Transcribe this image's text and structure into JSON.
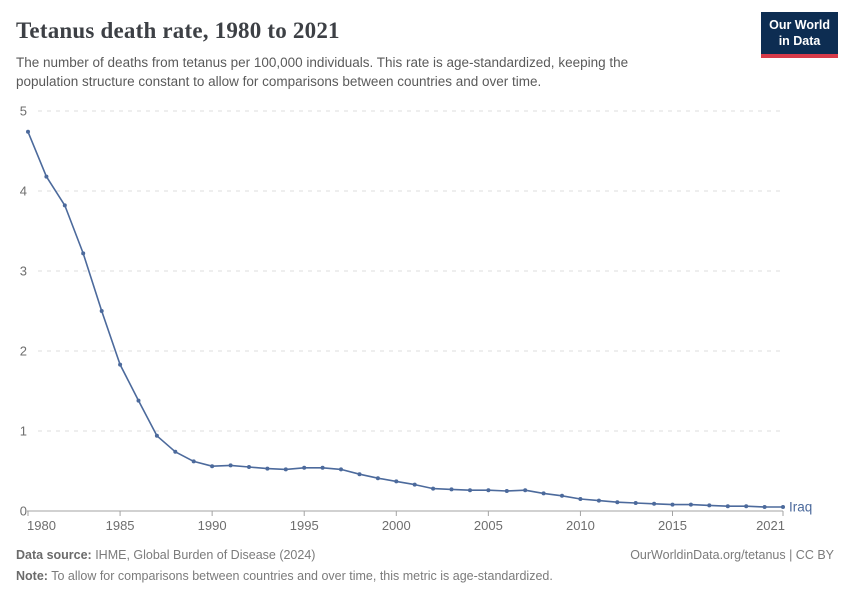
{
  "header": {
    "title": "Tetanus death rate, 1980 to 2021",
    "subtitle": "The number of deaths from tetanus per 100,000 individuals. This rate is age-standardized, keeping the population structure constant to allow for comparisons between countries and over time.",
    "logo": {
      "line1": "Our World",
      "line2": "in Data",
      "bg_color": "#0d2d52",
      "stripe_color": "#d73a49"
    }
  },
  "chart_data": {
    "type": "line",
    "title": "Tetanus death rate, 1980 to 2021",
    "xlabel": "",
    "ylabel": "",
    "x": [
      1980,
      1981,
      1982,
      1983,
      1984,
      1985,
      1986,
      1987,
      1988,
      1989,
      1990,
      1991,
      1992,
      1993,
      1994,
      1995,
      1996,
      1997,
      1998,
      1999,
      2000,
      2001,
      2002,
      2003,
      2004,
      2005,
      2006,
      2007,
      2008,
      2009,
      2010,
      2011,
      2012,
      2013,
      2014,
      2015,
      2016,
      2017,
      2018,
      2019,
      2020,
      2021
    ],
    "series": [
      {
        "name": "Iraq",
        "color": "#4C6A9C",
        "values": [
          4.74,
          4.18,
          3.82,
          3.22,
          2.5,
          1.83,
          1.38,
          0.94,
          0.74,
          0.62,
          0.56,
          0.57,
          0.55,
          0.53,
          0.52,
          0.54,
          0.54,
          0.52,
          0.46,
          0.41,
          0.37,
          0.33,
          0.28,
          0.27,
          0.26,
          0.26,
          0.25,
          0.26,
          0.22,
          0.19,
          0.15,
          0.13,
          0.11,
          0.1,
          0.09,
          0.08,
          0.08,
          0.07,
          0.06,
          0.06,
          0.05,
          0.05
        ]
      }
    ],
    "ylim": [
      0,
      5
    ],
    "yticks": [
      0,
      1,
      2,
      3,
      4,
      5
    ],
    "xticks": [
      1980,
      1985,
      1990,
      1995,
      2000,
      2005,
      2010,
      2015,
      2021
    ],
    "grid": "horizontal-dashed",
    "legend_position": "end-of-line-label",
    "colors": {
      "grid": "#dddddd",
      "axis": "#a3a3a3",
      "tick_text": "#6e6e6e"
    }
  },
  "footer": {
    "datasource_label": "Data source:",
    "datasource_text": " IHME, Global Burden of Disease (2024)",
    "rights": "OurWorldinData.org/tetanus | CC BY",
    "note_label": "Note:",
    "note_text": " To allow for comparisons between countries and over time, this metric is age-standardized."
  }
}
